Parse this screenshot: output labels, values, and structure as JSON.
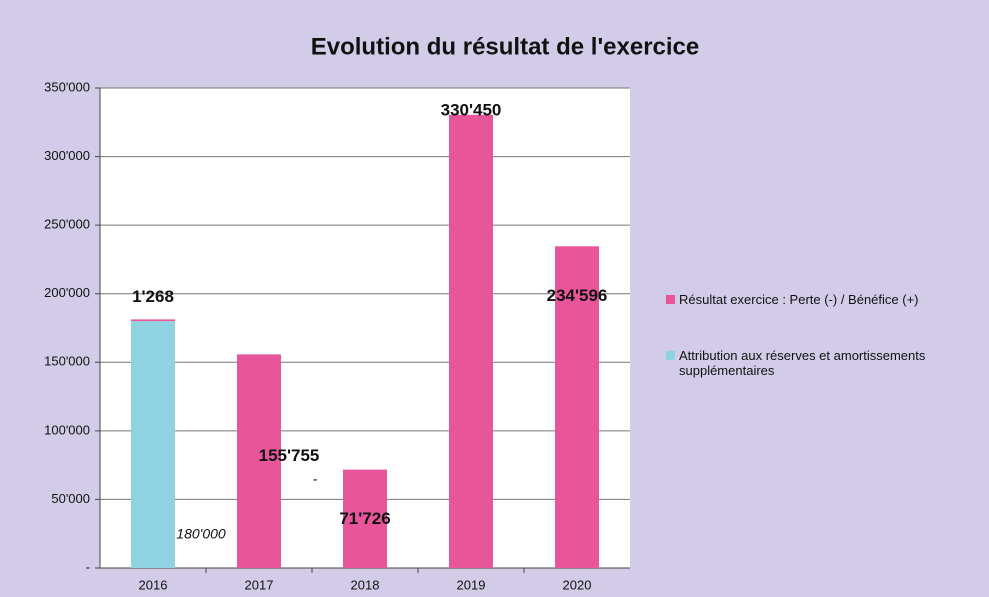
{
  "chart_data": {
    "type": "stacked_bar",
    "title": "Evolution du résultat de l'exercice",
    "categories": [
      "2016",
      "2017",
      "2018",
      "2019",
      "2020"
    ],
    "series": [
      {
        "name": "Attribution aux réserves et amortissements supplémentaires",
        "color": "#8fd3e0",
        "values": [
          180000,
          null,
          0,
          null,
          null
        ],
        "value_labels": [
          "180'000",
          null,
          "-",
          null,
          null
        ]
      },
      {
        "name": "Résultat exercice : Perte (-) / Bénéfice (+)",
        "color": "#e8559a",
        "values": [
          1268,
          155755,
          71726,
          330450,
          234596
        ],
        "value_labels": [
          "1'268",
          "155'755",
          "71'726",
          "330'450",
          "234'596"
        ]
      }
    ],
    "ylim": [
      0,
      350000
    ],
    "yticks": [
      {
        "value": 0,
        "label": "-"
      },
      {
        "value": 50000,
        "label": "50'000"
      },
      {
        "value": 100000,
        "label": "100'000"
      },
      {
        "value": 150000,
        "label": "150'000"
      },
      {
        "value": 200000,
        "label": "200'000"
      },
      {
        "value": 250000,
        "label": "250'000"
      },
      {
        "value": 300000,
        "label": "300'000"
      },
      {
        "value": 350000,
        "label": "350'000"
      }
    ],
    "grid": true
  }
}
